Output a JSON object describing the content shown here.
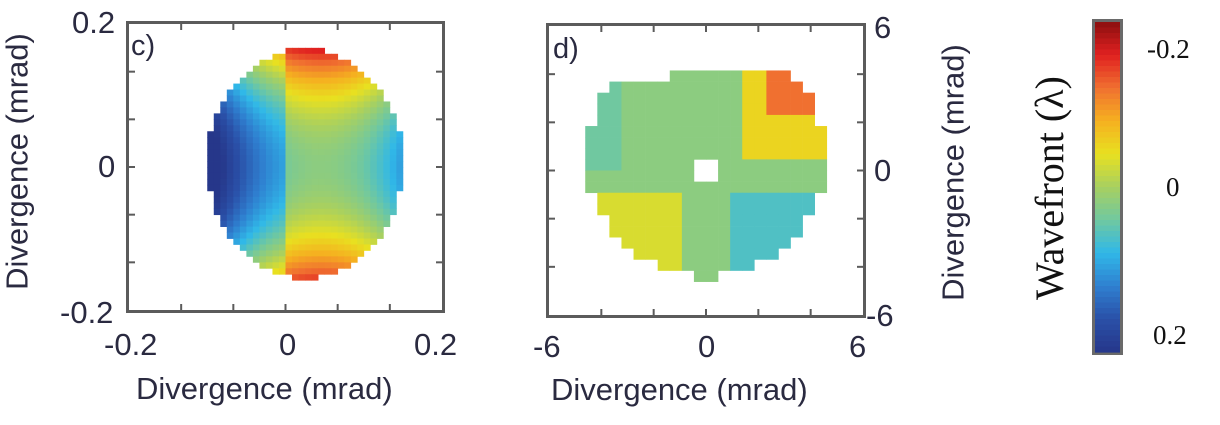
{
  "chart_data": [
    {
      "type": "heatmap",
      "panel_label": "c)",
      "xlabel": "Divergence (mrad)",
      "ylabel": "Divergence (mrad)",
      "xlim": [
        -0.2,
        0.2
      ],
      "ylim": [
        -0.2,
        0.2
      ],
      "xticks": [
        "-0.2",
        "0",
        "0.2"
      ],
      "yticks": [
        "0.2",
        "0",
        "-0.2"
      ],
      "ylabel_side": "left",
      "grid": false,
      "description_values": "wavefront map: red lobes top and bottom (~-0.2), blue lobes left and right (~+0.2), saddle near center (~0)",
      "colormap": "jet",
      "value_range": [
        -0.2,
        0.2
      ]
    },
    {
      "type": "heatmap",
      "panel_label": "d)",
      "xlabel": "Divergence (mrad)",
      "ylabel": "Divergence (mrad)",
      "xlim": [
        -6,
        6
      ],
      "ylim": [
        -6,
        6
      ],
      "xticks": [
        "-6",
        "0",
        "6"
      ],
      "yticks": [
        "6",
        "0",
        "-6"
      ],
      "ylabel_side": "right",
      "grid": false,
      "colormap": "jet",
      "value_range": [
        -0.2,
        0.2
      ]
    }
  ],
  "colorbar": {
    "label": "Wavefront (λ)",
    "ticks": [
      "-0.2",
      "0",
      "0.2"
    ],
    "colors": [
      "#8b0f0f",
      "#e02020",
      "#f07030",
      "#f5b020",
      "#e8e020",
      "#a8d060",
      "#70c8a0",
      "#30b8e8",
      "#2f80d0",
      "#2a50a8",
      "#26378a"
    ]
  }
}
